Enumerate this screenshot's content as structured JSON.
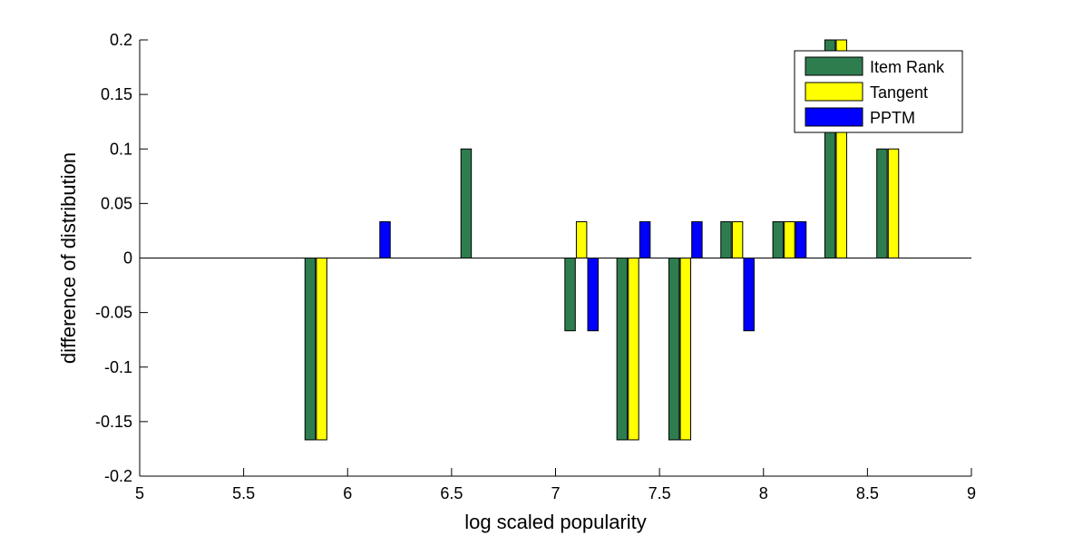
{
  "chart_data": {
    "type": "bar",
    "xlabel": "log scaled popularity",
    "ylabel": "difference of distribution",
    "xlim": [
      5,
      9
    ],
    "ylim": [
      -0.2,
      0.2
    ],
    "x_ticks": [
      "5",
      "5.5",
      "6",
      "6.5",
      "7",
      "7.5",
      "8",
      "8.5",
      "9"
    ],
    "y_ticks": [
      "-0.2",
      "-0.15",
      "-0.1",
      "-0.05",
      "0",
      "0.05",
      "0.1",
      "0.15",
      "0.2"
    ],
    "grid": false,
    "legend_position": "top-right",
    "categories": [
      5.875,
      6.125,
      6.625,
      7.125,
      7.375,
      7.625,
      7.875,
      8.125,
      8.375,
      8.625
    ],
    "series": [
      {
        "name": "Item Rank",
        "color": "#2e7d4f",
        "values": [
          -0.1667,
          0,
          0.1,
          -0.0667,
          -0.1667,
          -0.1667,
          0.0333,
          0.0333,
          0.2,
          0.1
        ]
      },
      {
        "name": "Tangent",
        "color": "#ffff00",
        "values": [
          -0.1667,
          0,
          0,
          0.0333,
          -0.1667,
          -0.1667,
          0.0333,
          0.0333,
          0.2,
          0.1
        ]
      },
      {
        "name": "PPTM",
        "color": "#0000ff",
        "values": [
          0,
          0.0333,
          0,
          -0.0667,
          0.0333,
          0.0333,
          -0.0667,
          0.0333,
          0,
          0
        ]
      }
    ]
  }
}
